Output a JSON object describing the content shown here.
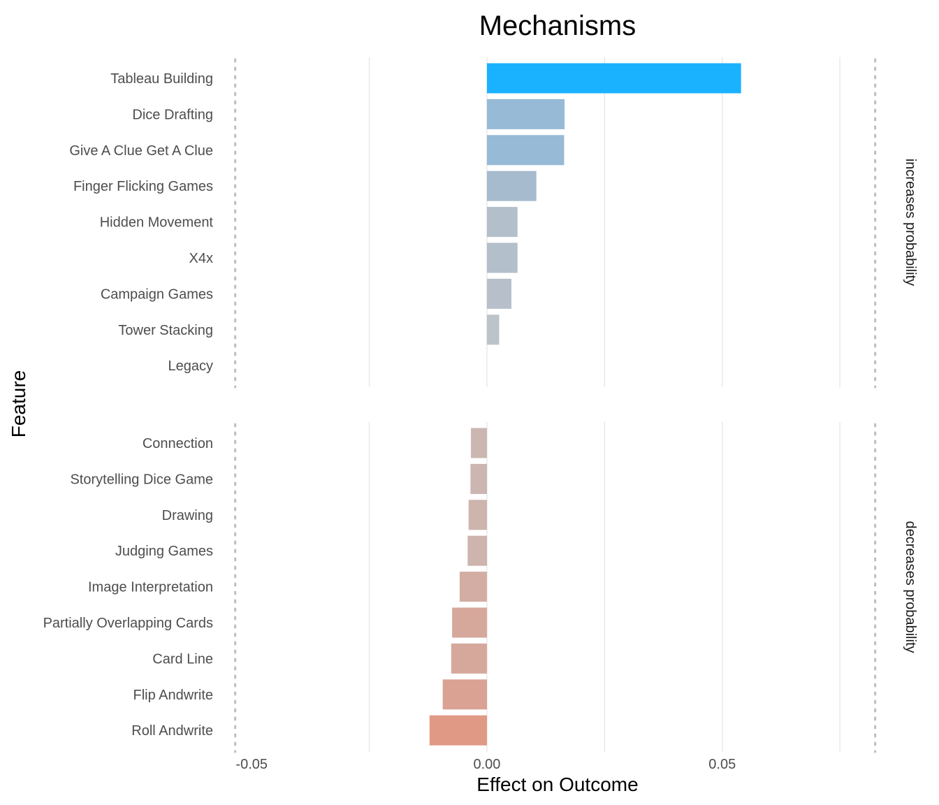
{
  "chart_data": {
    "type": "bar",
    "orientation": "horizontal",
    "title": "Mechanisms",
    "xlabel": "Effect on Outcome",
    "ylabel": "Feature",
    "xlim": [
      -0.053,
      0.083
    ],
    "x_ticks": [
      -0.05,
      0.0,
      0.05
    ],
    "x_tick_labels": [
      "-0.05",
      "0.00",
      "0.05"
    ],
    "x_gridlines": [
      -0.025,
      0.0,
      0.025,
      0.05,
      0.075
    ],
    "reference_lines": [
      -0.0535,
      0.0825
    ],
    "grid": true,
    "legend": "none",
    "panels": [
      {
        "name": "increases probability",
        "categories": [
          "Tableau Building",
          "Dice Drafting",
          "Give A Clue Get A Clue",
          "Finger Flicking Games",
          "Hidden Movement",
          "X4x",
          "Campaign Games",
          "Tower Stacking",
          "Legacy"
        ],
        "values": [
          0.054,
          0.0165,
          0.0164,
          0.0105,
          0.0065,
          0.0065,
          0.0052,
          0.0026,
          0.0
        ],
        "colors": [
          "#1ab2ff",
          "#97bad6",
          "#97bad6",
          "#a6bbcd",
          "#b3bfcb",
          "#b3bfcb",
          "#b7c0ca",
          "#bcc3c9",
          "#bec3c7"
        ]
      },
      {
        "name": "decreases probability",
        "categories": [
          "Connection",
          "Storytelling Dice Game",
          "Drawing",
          "Judging Games",
          "Image Interpretation",
          "Partially Overlapping Cards",
          "Card Line",
          "Flip Andwrite",
          "Roll Andwrite"
        ],
        "values": [
          -0.0034,
          -0.0035,
          -0.0039,
          -0.0041,
          -0.0058,
          -0.0074,
          -0.0076,
          -0.0094,
          -0.0122
        ],
        "colors": [
          "#cbb6b1",
          "#cbb6b1",
          "#cdb4ad",
          "#cdb4ad",
          "#d3ada3",
          "#d6a89b",
          "#d6a89b",
          "#daa293",
          "#e09985"
        ]
      }
    ]
  }
}
